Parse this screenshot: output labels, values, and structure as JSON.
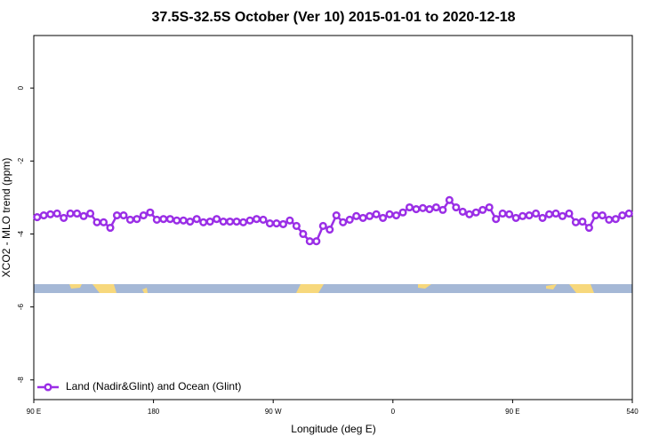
{
  "chart_data": {
    "type": "line",
    "title": "37.5S-32.5S October (Ver 10)   2015-01-01 to 2020-12-18",
    "x_label": "Longitude (deg E)",
    "y_label": "XCO2 - MLO trend (ppm)",
    "x": [
      92.5,
      97.5,
      102.5,
      107.5,
      112.5,
      117.5,
      122.5,
      127.5,
      132.5,
      137.5,
      142.5,
      147.5,
      152.5,
      157.5,
      162.5,
      167.5,
      172.5,
      177.5,
      182.5,
      187.5,
      192.5,
      197.5,
      202.5,
      207.5,
      212.5,
      217.5,
      222.5,
      227.5,
      232.5,
      237.5,
      242.5,
      247.5,
      252.5,
      257.5,
      262.5,
      267.5,
      272.5,
      277.5,
      282.5,
      287.5,
      292.5,
      297.5,
      302.5,
      307.5,
      312.5,
      317.5,
      322.5,
      327.5,
      332.5,
      337.5,
      342.5,
      347.5,
      352.5,
      357.5,
      362.5,
      367.5,
      372.5,
      377.5,
      382.5,
      387.5,
      392.5,
      397.5,
      402.5,
      407.5,
      412.5,
      417.5,
      422.5,
      427.5,
      432.5,
      437.5,
      442.5,
      447.5,
      452.5,
      457.5,
      462.5,
      467.5,
      472.5,
      477.5,
      482.5,
      487.5,
      492.5,
      497.5,
      502.5,
      507.5,
      512.5,
      517.5,
      522.5,
      527.5,
      532.5,
      537.5
    ],
    "series": [
      {
        "name": "Land (Nadir&Glint) and Ocean (Glint)",
        "color": "#9a2ee6",
        "values": [
          -3.54,
          -3.49,
          -3.46,
          -3.44,
          -3.56,
          -3.44,
          -3.44,
          -3.51,
          -3.44,
          -3.68,
          -3.68,
          -3.83,
          -3.49,
          -3.49,
          -3.61,
          -3.59,
          -3.49,
          -3.41,
          -3.61,
          -3.59,
          -3.59,
          -3.63,
          -3.63,
          -3.66,
          -3.59,
          -3.68,
          -3.66,
          -3.59,
          -3.66,
          -3.66,
          -3.66,
          -3.68,
          -3.63,
          -3.59,
          -3.61,
          -3.71,
          -3.71,
          -3.73,
          -3.63,
          -3.78,
          -4.0,
          -4.2,
          -4.2,
          -3.78,
          -3.88,
          -3.49,
          -3.68,
          -3.61,
          -3.51,
          -3.56,
          -3.51,
          -3.46,
          -3.56,
          -3.46,
          -3.49,
          -3.41,
          -3.27,
          -3.32,
          -3.29,
          -3.32,
          -3.27,
          -3.34,
          -3.07,
          -3.27,
          -3.39,
          -3.46,
          -3.41,
          -3.34,
          -3.27,
          -3.59,
          -3.44,
          -3.46,
          -3.56,
          -3.51,
          -3.49,
          -3.44,
          -3.56,
          -3.46,
          -3.44,
          -3.51,
          -3.44,
          -3.68,
          -3.66,
          -3.83,
          -3.49,
          -3.49,
          -3.61,
          -3.59,
          -3.49,
          -3.44
        ]
      }
    ],
    "xlim": [
      90,
      540
    ],
    "xticks": [
      {
        "value": 90,
        "label": "90 E"
      },
      180,
      {
        "value": 270,
        "label": "90 W"
      },
      {
        "value": 360,
        "label": "0"
      },
      {
        "value": 450,
        "label": "90 E"
      },
      540
    ],
    "ylim": [
      -8.54,
      1.44
    ],
    "yticks": [
      0,
      -2,
      -4,
      -6,
      -8
    ],
    "legend": "lower left"
  }
}
